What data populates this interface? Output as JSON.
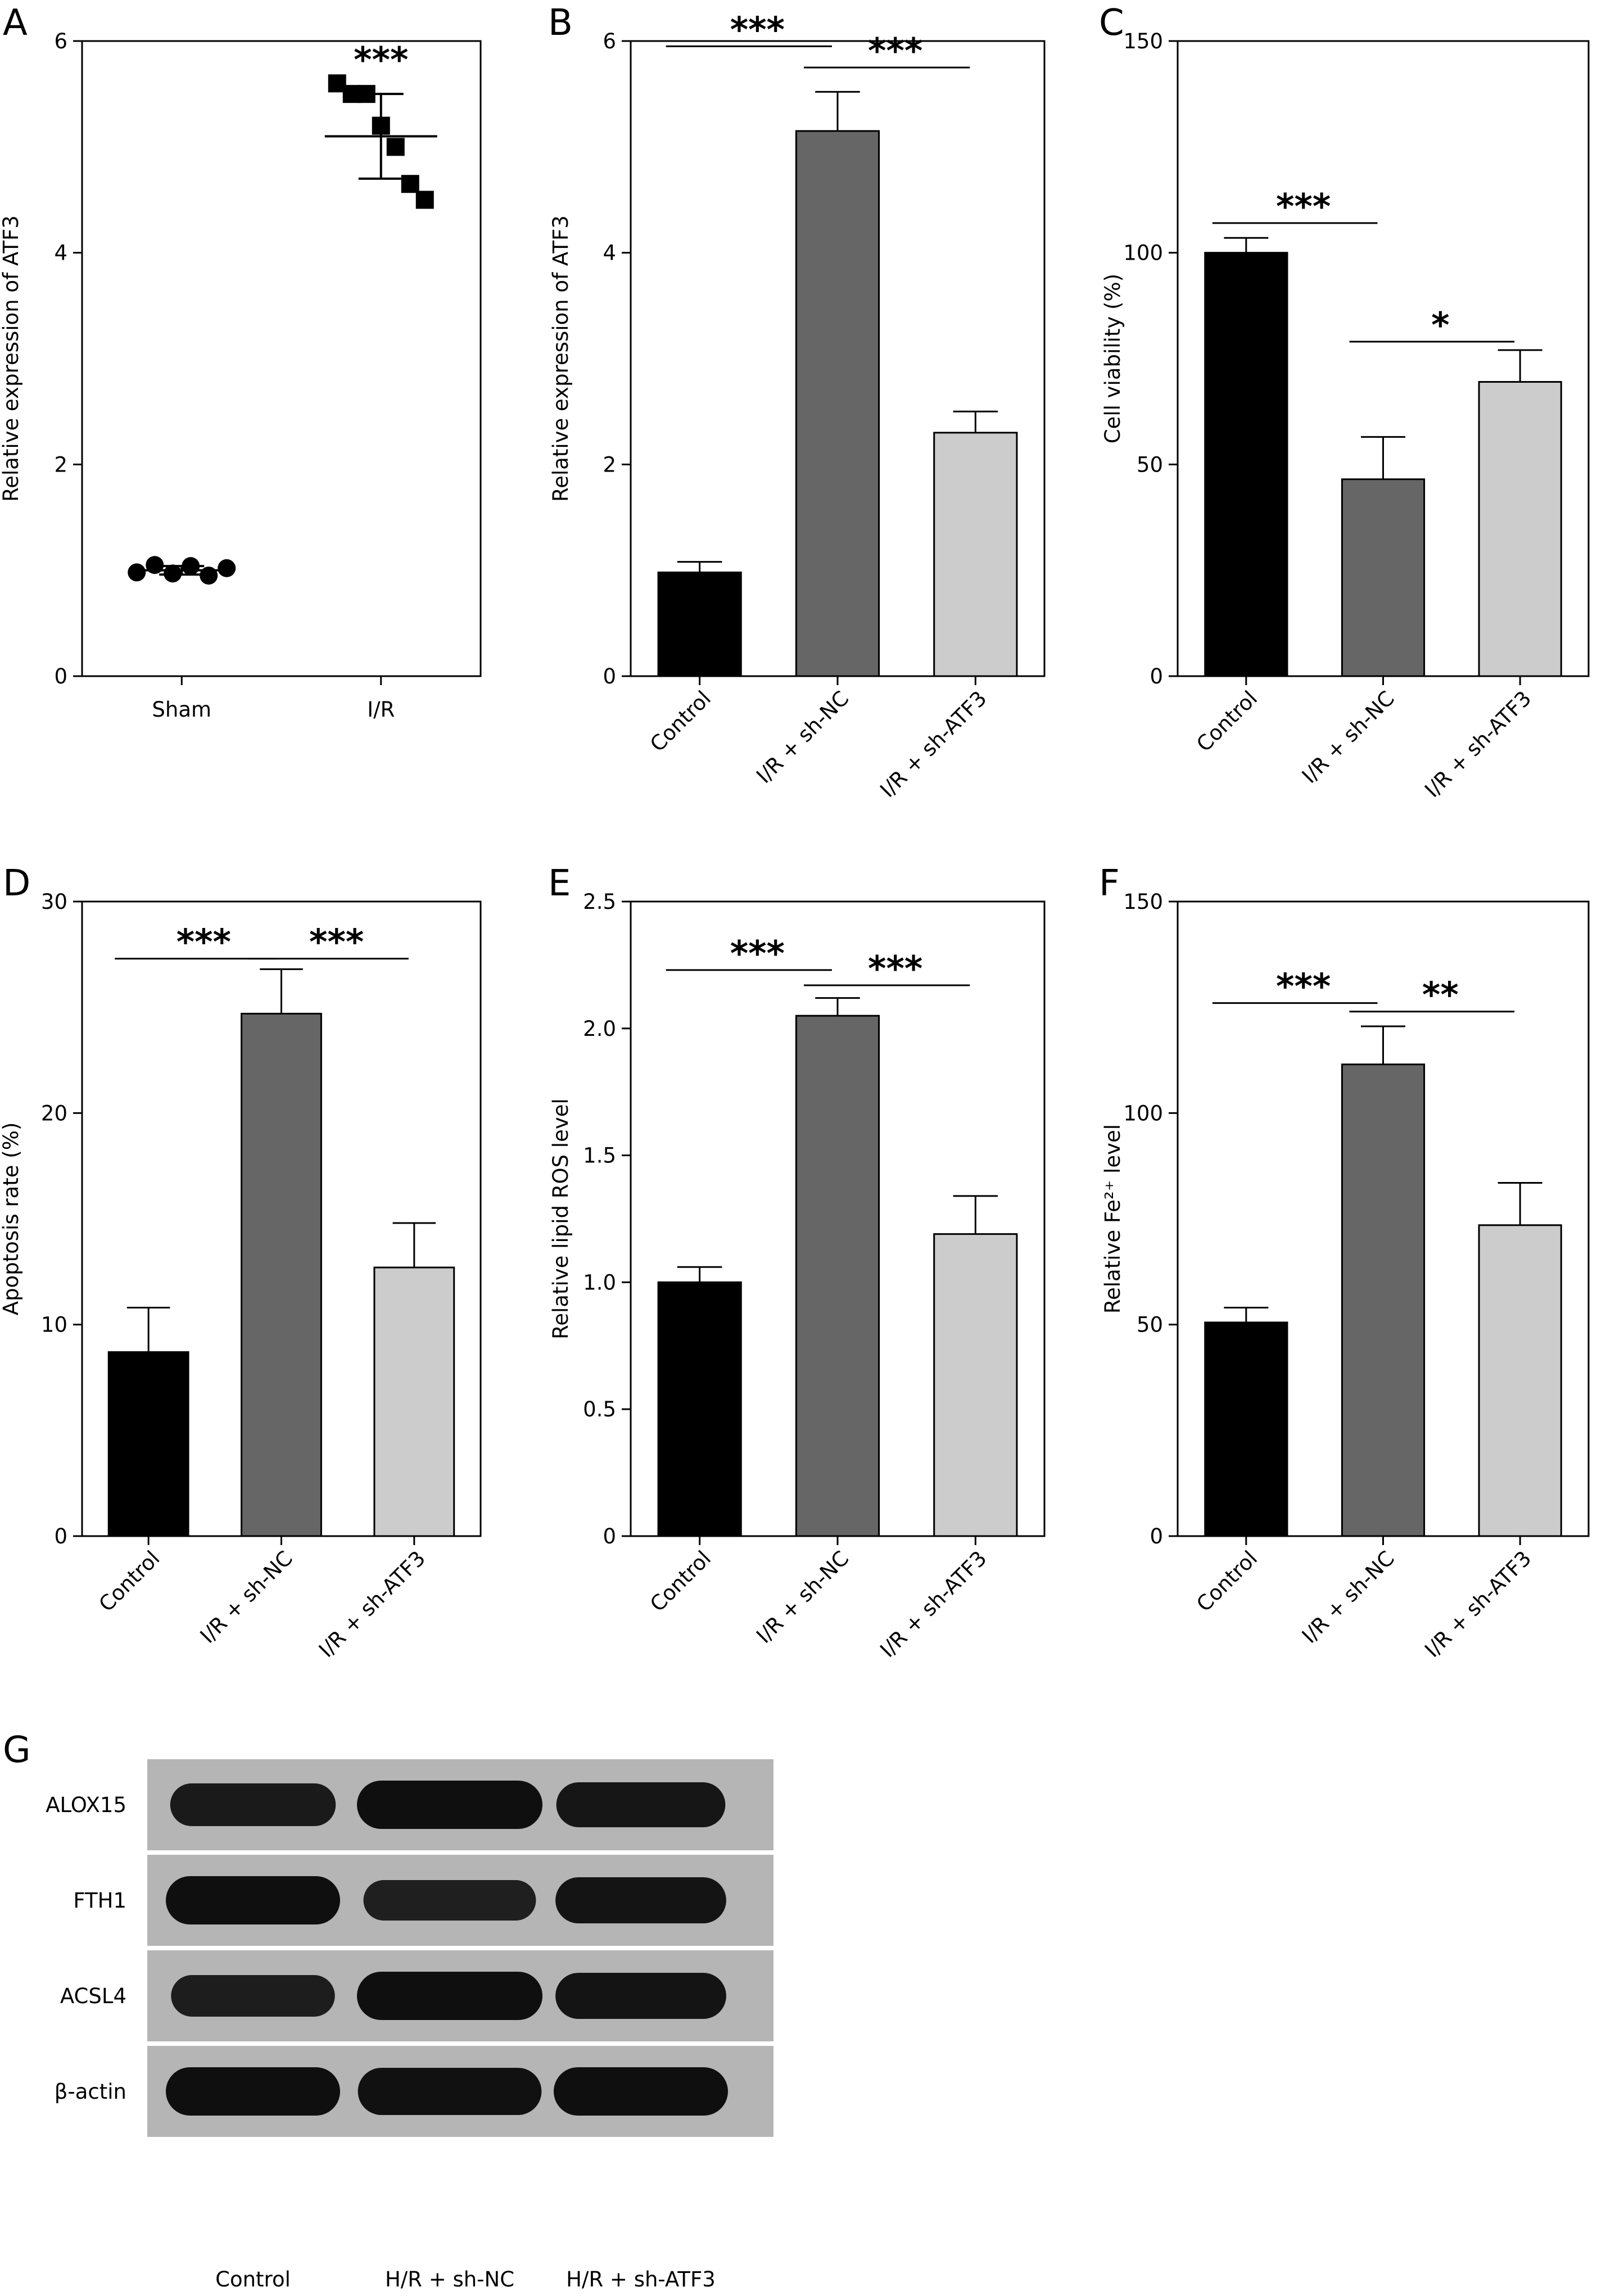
{
  "chart_data": [
    {
      "panel": "A",
      "type": "scatter",
      "ylabel": "Relative expression of ATF3",
      "ylim": [
        0,
        6
      ],
      "yticks": [
        "0",
        "2",
        "4",
        "6"
      ],
      "categories": [
        "Sham",
        "I/R"
      ],
      "points": [
        {
          "group": "Sham",
          "values": [
            0.98,
            1.05,
            0.97,
            1.04,
            0.95,
            1.02
          ]
        },
        {
          "group": "I/R",
          "values": [
            5.6,
            5.5,
            5.5,
            5.2,
            5.0,
            4.65,
            4.5
          ]
        }
      ],
      "means": [
        1.0,
        5.1
      ],
      "sd": [
        0.04,
        0.4
      ],
      "significance": [
        {
          "label": "***",
          "over": "I/R"
        }
      ]
    },
    {
      "panel": "B",
      "type": "bar",
      "ylabel": "Relative expression of ATF3",
      "ylim": [
        0,
        6
      ],
      "yticks": [
        "0",
        "2",
        "4",
        "6"
      ],
      "categories": [
        "Control",
        "I/R + sh-NC",
        "I/R + sh-ATF3"
      ],
      "values": [
        0.98,
        5.15,
        2.3
      ],
      "errors": [
        0.1,
        0.37,
        0.2
      ],
      "colors": [
        "#000000",
        "#666666",
        "#cccccc"
      ],
      "significance": [
        {
          "label": "***",
          "from": 0,
          "to": 1,
          "y": 5.95
        },
        {
          "label": "***",
          "from": 1,
          "to": 2,
          "y": 5.75
        }
      ]
    },
    {
      "panel": "C",
      "type": "bar",
      "ylabel": "Cell viability (%)",
      "ylim": [
        0,
        150
      ],
      "yticks": [
        "0",
        "50",
        "100",
        "150"
      ],
      "categories": [
        "Control",
        "I/R + sh-NC",
        "I/R + sh-ATF3"
      ],
      "values": [
        100,
        46.5,
        69.5
      ],
      "errors": [
        3.5,
        10,
        7.5
      ],
      "colors": [
        "#000000",
        "#666666",
        "#cccccc"
      ],
      "significance": [
        {
          "label": "***",
          "from": 0,
          "to": 1,
          "y": 107
        },
        {
          "label": "*",
          "from": 1,
          "to": 2,
          "y": 79
        }
      ]
    },
    {
      "panel": "D",
      "type": "bar",
      "ylabel": "Apoptosis rate (%)",
      "ylim": [
        0,
        30
      ],
      "yticks": [
        "0",
        "10",
        "20",
        "30"
      ],
      "categories": [
        "Control",
        "I/R + sh-NC",
        "I/R + sh-ATF3"
      ],
      "values": [
        8.7,
        24.7,
        12.7
      ],
      "errors": [
        2.1,
        2.1,
        2.1
      ],
      "colors": [
        "#000000",
        "#666666",
        "#cccccc"
      ],
      "significance": [
        {
          "label": "***",
          "from": 0,
          "to": 1,
          "y": 27.3
        },
        {
          "label": "***",
          "from": 1,
          "to": 2,
          "y": 27.3
        }
      ]
    },
    {
      "panel": "E",
      "type": "bar",
      "ylabel": "Relative lipid ROS level",
      "ylim": [
        0,
        2.5
      ],
      "yticks": [
        "0",
        "0.5",
        "1.0",
        "1.5",
        "2.0",
        "2.5"
      ],
      "categories": [
        "Control",
        "I/R + sh-NC",
        "I/R + sh-ATF3"
      ],
      "values": [
        1.0,
        2.05,
        1.19
      ],
      "errors": [
        0.06,
        0.07,
        0.15
      ],
      "colors": [
        "#000000",
        "#666666",
        "#cccccc"
      ],
      "significance": [
        {
          "label": "***",
          "from": 0,
          "to": 1,
          "y": 2.23
        },
        {
          "label": "***",
          "from": 1,
          "to": 2,
          "y": 2.17
        }
      ]
    },
    {
      "panel": "F",
      "type": "bar",
      "ylabel": "Relative Fe²⁺ level",
      "ylim": [
        0,
        150
      ],
      "yticks": [
        "0",
        "50",
        "100",
        "150"
      ],
      "categories": [
        "Control",
        "I/R + sh-NC",
        "I/R + sh-ATF3"
      ],
      "values": [
        50.5,
        111.5,
        73.5
      ],
      "errors": [
        3.5,
        9,
        10
      ],
      "colors": [
        "#000000",
        "#666666",
        "#cccccc"
      ],
      "significance": [
        {
          "label": "***",
          "from": 0,
          "to": 1,
          "y": 126
        },
        {
          "label": "**",
          "from": 1,
          "to": 2,
          "y": 124
        }
      ]
    }
  ],
  "blot": {
    "panel": "G",
    "bands": [
      "ALOX15",
      "FTH1",
      "ACSL4",
      "β-actin"
    ],
    "lanes": [
      "Control",
      "H/R + sh-NC",
      "H/R + sh-ATF3"
    ],
    "intensity": [
      [
        0.75,
        1.0,
        0.85
      ],
      [
        1.0,
        0.65,
        0.9
      ],
      [
        0.7,
        1.0,
        0.9
      ],
      [
        1.0,
        0.95,
        1.0
      ]
    ]
  }
}
